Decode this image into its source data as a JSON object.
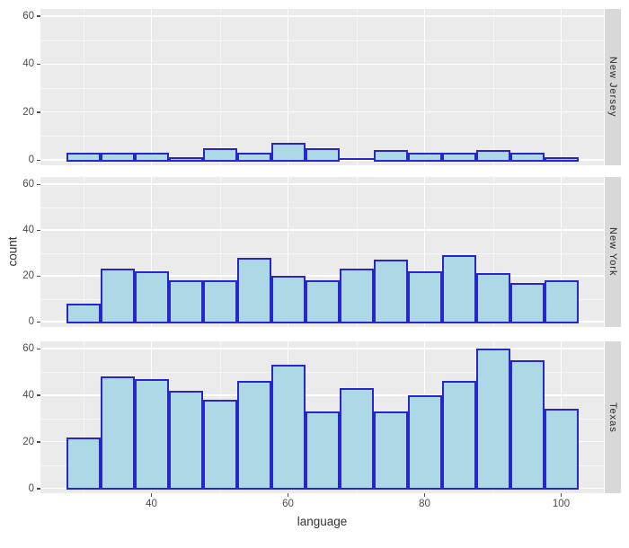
{
  "chart_data": {
    "type": "bar",
    "subtype": "faceted-histogram",
    "xlabel": "language",
    "ylabel": "count",
    "bin_start": 27.5,
    "bin_width": 5,
    "bin_edges": [
      27.5,
      32.5,
      37.5,
      42.5,
      47.5,
      52.5,
      57.5,
      62.5,
      67.5,
      72.5,
      77.5,
      82.5,
      87.5,
      92.5,
      97.5,
      102.5
    ],
    "x_ticks": [
      40,
      60,
      80,
      100
    ],
    "y_ticks": [
      0,
      20,
      40,
      60
    ],
    "x_minor_ticks": [
      30,
      50,
      70,
      90
    ],
    "y_minor_ticks": [
      10,
      30,
      50
    ],
    "xlim": [
      23.75,
      106.25
    ],
    "ylim": [
      0,
      63
    ],
    "grid": true,
    "facets": [
      {
        "label": "New Jersey",
        "counts": [
          3,
          3,
          3,
          1,
          5,
          3,
          7,
          5,
          0,
          4,
          3,
          3,
          4,
          3,
          1
        ]
      },
      {
        "label": "New York",
        "counts": [
          8,
          23,
          22,
          18,
          18,
          28,
          20,
          18,
          23,
          27,
          22,
          29,
          21,
          17,
          18
        ]
      },
      {
        "label": "Texas",
        "counts": [
          22,
          48,
          47,
          42,
          38,
          46,
          53,
          33,
          43,
          33,
          40,
          46,
          60,
          55,
          34
        ]
      }
    ],
    "colors": {
      "bar_fill": "#ADD8E6",
      "bar_border": "#2626C9",
      "panel_background": "#EBEBEB",
      "strip_background": "#D8D8D8",
      "gridline": "#FFFFFF",
      "tick_text": "#4D4D4D",
      "title_text": "#333333"
    }
  }
}
